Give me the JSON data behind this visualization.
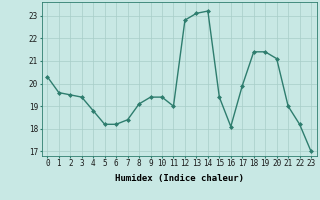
{
  "x": [
    0,
    1,
    2,
    3,
    4,
    5,
    6,
    7,
    8,
    9,
    10,
    11,
    12,
    13,
    14,
    15,
    16,
    17,
    18,
    19,
    20,
    21,
    22,
    23
  ],
  "y": [
    20.3,
    19.6,
    19.5,
    19.4,
    18.8,
    18.2,
    18.2,
    18.4,
    19.1,
    19.4,
    19.4,
    19.0,
    22.8,
    23.1,
    23.2,
    19.4,
    18.1,
    19.9,
    21.4,
    21.4,
    21.1,
    19.0,
    18.2,
    17.0
  ],
  "line_color": "#2E7D6E",
  "marker": "D",
  "markersize": 2.0,
  "bg_color": "#C8E8E4",
  "grid_color": "#A8CEC8",
  "xlabel": "Humidex (Indice chaleur)",
  "xlim": [
    -0.5,
    23.5
  ],
  "ylim": [
    16.8,
    23.6
  ],
  "yticks": [
    17,
    18,
    19,
    20,
    21,
    22,
    23
  ],
  "xticks": [
    0,
    1,
    2,
    3,
    4,
    5,
    6,
    7,
    8,
    9,
    10,
    11,
    12,
    13,
    14,
    15,
    16,
    17,
    18,
    19,
    20,
    21,
    22,
    23
  ],
  "xlabel_fontsize": 6.5,
  "tick_fontsize": 5.5,
  "linewidth": 1.0
}
